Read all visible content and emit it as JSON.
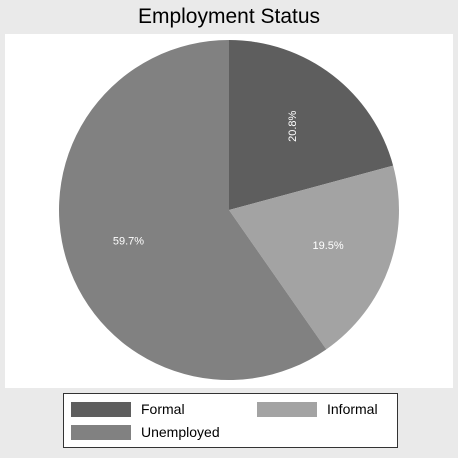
{
  "chart_data": {
    "type": "pie",
    "title": "Employment Status",
    "slices": [
      {
        "name": "Formal",
        "value": 20.8,
        "label": "20.8%",
        "color": "#5e5e5e",
        "label_rotated": true
      },
      {
        "name": "Informal",
        "value": 19.5,
        "label": "19.5%",
        "color": "#a3a3a3",
        "label_rotated": false
      },
      {
        "name": "Unemployed",
        "value": 59.7,
        "label": "59.7%",
        "color": "#818181",
        "label_rotated": false
      }
    ],
    "start_angle_deg": 0,
    "direction": "clockwise",
    "label_color": "#ffffff",
    "legend": {
      "position": "bottom",
      "columns": 2
    }
  }
}
